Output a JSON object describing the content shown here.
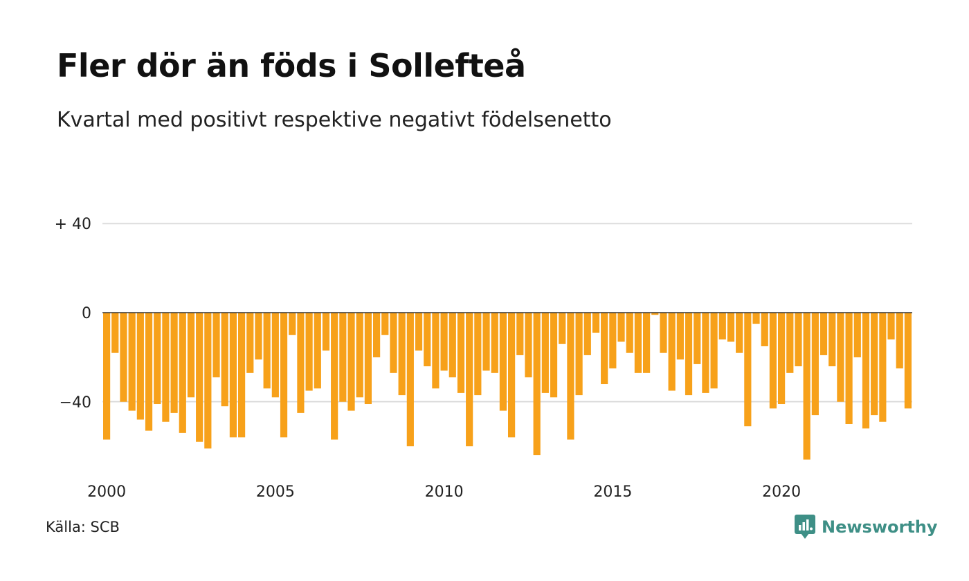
{
  "title": "Fler dör än föds i Sollefteå",
  "subtitle": "Kvartal med positivt respektive negativt födelsenetto",
  "source": "Källa: SCB",
  "brand": "Newsworthy",
  "colors": {
    "bar": "#f7a11a",
    "grid": "#dddddd",
    "zero_line": "#333333",
    "brand": "#3e8f86"
  },
  "chart_data": {
    "type": "bar",
    "title": "Fler dör än föds i Sollefteå",
    "subtitle": "Kvartal med positivt respektive negativt födelsenetto",
    "xlabel": "",
    "ylabel": "",
    "ylim": [
      -70,
      40
    ],
    "y_ticks": [
      {
        "value": 40,
        "label": "+ 40"
      },
      {
        "value": 0,
        "label": "0"
      },
      {
        "value": -40,
        "label": "−40"
      }
    ],
    "x_ticks": [
      "2000",
      "2005",
      "2010",
      "2015",
      "2020"
    ],
    "start_year": 2000,
    "grid": true,
    "values": [
      -57,
      -18,
      -40,
      -44,
      -48,
      -53,
      -41,
      -49,
      -45,
      -54,
      -38,
      -58,
      -61,
      -29,
      -42,
      -56,
      -56,
      -27,
      -21,
      -34,
      -38,
      -56,
      -10,
      -45,
      -35,
      -34,
      -17,
      -57,
      -40,
      -44,
      -38,
      -41,
      -20,
      -10,
      -27,
      -37,
      -60,
      -17,
      -24,
      -34,
      -26,
      -29,
      -36,
      -60,
      -37,
      -26,
      -27,
      -44,
      -56,
      -19,
      -29,
      -64,
      -36,
      -38,
      -14,
      -57,
      -37,
      -19,
      -9,
      -32,
      -25,
      -13,
      -18,
      -27,
      -27,
      -1,
      -18,
      -35,
      -21,
      -37,
      -23,
      -36,
      -34,
      -12,
      -13,
      -18,
      -51,
      -5,
      -15,
      -43,
      -41,
      -27,
      -24,
      -66,
      -46,
      -19,
      -24,
      -40,
      -50,
      -20,
      -52,
      -46,
      -49,
      -12,
      -25,
      -43
    ]
  }
}
